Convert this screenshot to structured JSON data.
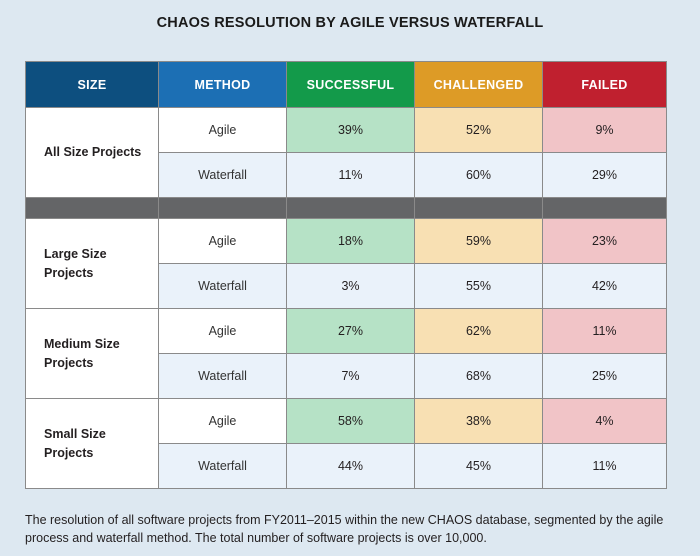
{
  "title": "CHAOS RESOLUTION BY AGILE VERSUS WATERFALL",
  "caption": "The resolution of all software projects from FY2011–2015 within the new CHAOS database, segmented by the agile process and waterfall method. The total number of software projects is over 10,000.",
  "colors": {
    "size_header": "#0d4f7f",
    "method_header": "#1c6fb4",
    "successful_header": "#139a4a",
    "challenged_header": "#dd9b26",
    "failed_header": "#c0202f",
    "separator": "#646567"
  },
  "chart_data": {
    "type": "table",
    "title": "CHAOS RESOLUTION BY AGILE VERSUS WATERFALL",
    "columns": [
      "SIZE",
      "METHOD",
      "SUCCESSFUL",
      "CHALLENGED",
      "FAILED"
    ],
    "groups": [
      {
        "size": "All Size Projects",
        "rows": [
          {
            "method": "Agile",
            "successful": "39%",
            "challenged": "52%",
            "failed": "9%"
          },
          {
            "method": "Waterfall",
            "successful": "11%",
            "challenged": "60%",
            "failed": "29%"
          }
        ]
      },
      {
        "size": "Large Size Projects",
        "rows": [
          {
            "method": "Agile",
            "successful": "18%",
            "challenged": "59%",
            "failed": "23%"
          },
          {
            "method": "Waterfall",
            "successful": "3%",
            "challenged": "55%",
            "failed": "42%"
          }
        ]
      },
      {
        "size": "Medium Size Projects",
        "rows": [
          {
            "method": "Agile",
            "successful": "27%",
            "challenged": "62%",
            "failed": "11%"
          },
          {
            "method": "Waterfall",
            "successful": "7%",
            "challenged": "68%",
            "failed": "25%"
          }
        ]
      },
      {
        "size": "Small Size Projects",
        "rows": [
          {
            "method": "Agile",
            "successful": "58%",
            "challenged": "38%",
            "failed": "4%"
          },
          {
            "method": "Waterfall",
            "successful": "44%",
            "challenged": "45%",
            "failed": "11%"
          }
        ]
      }
    ]
  }
}
